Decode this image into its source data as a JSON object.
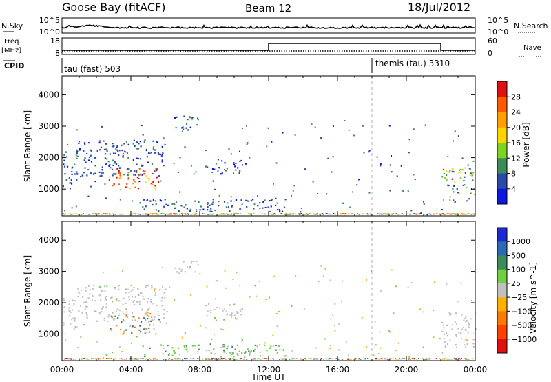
{
  "header": {
    "station": "Goose Bay (fitACF)",
    "beam": "Beam 12",
    "date": "18/Jul/2012"
  },
  "status_panels": {
    "nsky_label": "N.Sky",
    "nsearch_label": "N.Search",
    "nsky_ticks": [
      "10^5",
      "10^0"
    ],
    "nsearch_ticks": [
      "10^5",
      "10^0"
    ],
    "freq_label_line1": "Freq.",
    "freq_label_line2": "[MHz]",
    "freq_ticks": [
      "18",
      "8"
    ],
    "nave_label": "Nave",
    "nave_ticks": [
      "60",
      "0"
    ],
    "cpid_label": "CPID",
    "cpid_segments": [
      {
        "label": "tau (fast) 503",
        "start_hour": 0
      },
      {
        "label": "themis (tau) 3310",
        "start_hour": 18
      }
    ]
  },
  "chart_data": [
    {
      "type": "heatmap",
      "variable": "Power",
      "ylabel": "Slant Range [km]",
      "ylim": [
        150,
        4600
      ],
      "yticks": [
        1000,
        2000,
        3000,
        4000
      ],
      "xlim": [
        0,
        24
      ],
      "colorbar": {
        "label": "Power [dB]",
        "ticks": [
          "28",
          "24",
          "20",
          "16",
          "12",
          "8",
          "4"
        ],
        "colors": [
          "#e01010",
          "#ff5a00",
          "#ffa000",
          "#ffd400",
          "#7ed321",
          "#3c8c5a",
          "#2a4aa8",
          "#0a18e0"
        ]
      },
      "echo_regions": [
        {
          "t0": 0.0,
          "t1": 0.9,
          "r0": 1100,
          "r1": 2300,
          "level": "low"
        },
        {
          "t0": 0.8,
          "t1": 6.0,
          "r0": 1400,
          "r1": 2600,
          "level": "low"
        },
        {
          "t0": 2.7,
          "t1": 5.6,
          "r0": 1000,
          "r1": 1700,
          "level": "high"
        },
        {
          "t0": 6.5,
          "t1": 8.0,
          "r0": 2900,
          "r1": 3400,
          "level": "low"
        },
        {
          "t0": 8.3,
          "t1": 10.5,
          "r0": 1500,
          "r1": 2000,
          "level": "low"
        },
        {
          "t0": 4.5,
          "t1": 13.0,
          "r0": 300,
          "r1": 700,
          "level": "low"
        },
        {
          "t0": 22.0,
          "t1": 24.0,
          "r0": 600,
          "r1": 1700,
          "level": "mid"
        }
      ]
    },
    {
      "type": "heatmap",
      "variable": "Velocity",
      "ylabel": "Slant Range [km]",
      "xlabel": "Time UT",
      "ylim": [
        150,
        4600
      ],
      "yticks": [
        1000,
        2000,
        3000,
        4000
      ],
      "xlim": [
        0,
        24
      ],
      "xticks": [
        "00:00",
        "04:00",
        "08:00",
        "12:00",
        "16:00",
        "20:00",
        "00:00"
      ],
      "colorbar": {
        "label": "Velocity [m s^-1]",
        "ticks": [
          "1000",
          "500",
          "100",
          "25",
          "−25",
          "−100",
          "−500",
          "−1000"
        ],
        "colors": [
          "#1a2ad0",
          "#2a6ab0",
          "#3c8c5a",
          "#6ed040",
          "#c0c0c0",
          "#ffb000",
          "#ff7a00",
          "#ff4000",
          "#e01010"
        ]
      },
      "echo_regions": [
        {
          "t0": 0.0,
          "t1": 0.9,
          "r0": 1100,
          "r1": 2300,
          "level": "ground"
        },
        {
          "t0": 0.8,
          "t1": 6.0,
          "r0": 1400,
          "r1": 2600,
          "level": "ground"
        },
        {
          "t0": 2.7,
          "t1": 5.6,
          "r0": 1000,
          "r1": 1700,
          "level": "mixed"
        },
        {
          "t0": 6.5,
          "t1": 8.0,
          "r0": 2900,
          "r1": 3400,
          "level": "ground"
        },
        {
          "t0": 8.3,
          "t1": 10.5,
          "r0": 1500,
          "r1": 2000,
          "level": "ground"
        },
        {
          "t0": 4.5,
          "t1": 13.0,
          "r0": 300,
          "r1": 700,
          "level": "green"
        },
        {
          "t0": 22.0,
          "t1": 24.0,
          "r0": 600,
          "r1": 1700,
          "level": "ground"
        }
      ]
    }
  ]
}
